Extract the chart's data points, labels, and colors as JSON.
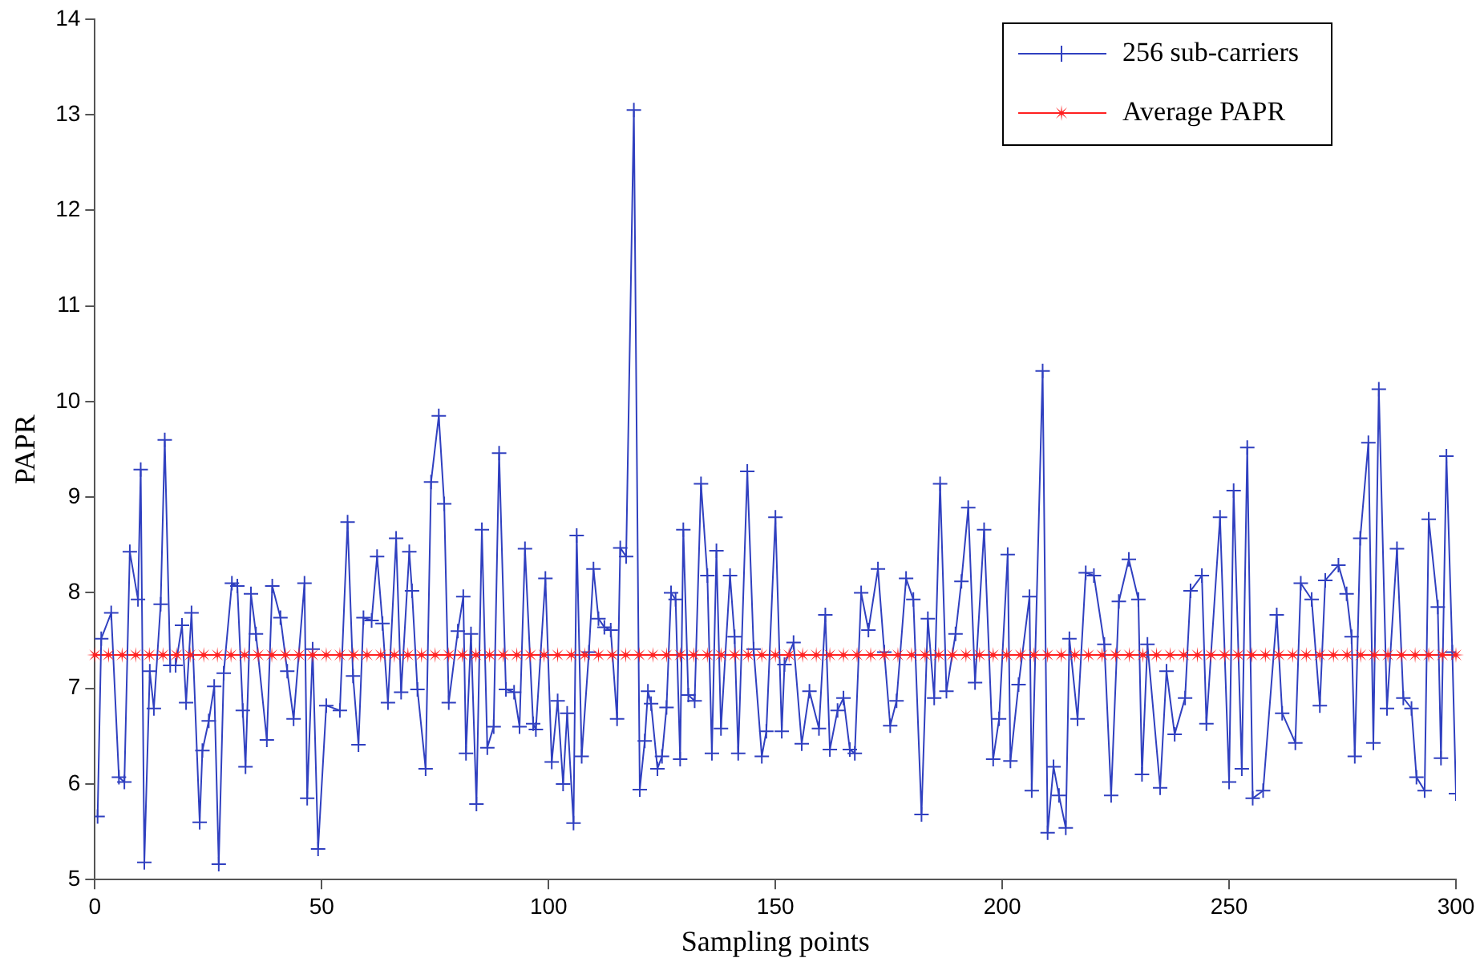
{
  "chart_data": {
    "type": "line",
    "xlabel": "Sampling points",
    "ylabel": "PAPR",
    "xlim": [
      0,
      300
    ],
    "xticks": [
      0,
      50,
      100,
      150,
      200,
      250,
      300
    ],
    "ylim": [
      5,
      14
    ],
    "yticks": [
      5,
      6,
      7,
      8,
      9,
      10,
      11,
      12,
      13,
      14
    ],
    "grid": false,
    "legend": "top right",
    "series": [
      {
        "name": "256 sub-carriers",
        "color": "#3040c0",
        "marker": "cross",
        "x": [
          0.6,
          1.4,
          3.6,
          5.3,
          6.5,
          7.7,
          9.5,
          10.1,
          10.9,
          12.1,
          13,
          14.5,
          15.4,
          16.6,
          17.8,
          19.2,
          20.1,
          21.3,
          23.1,
          23.7,
          25.1,
          26.3,
          27.3,
          28.4,
          30.2,
          31.4,
          32.6,
          33.2,
          34.4,
          35.5,
          37.9,
          39.1,
          40.9,
          42.4,
          43.8,
          46.2,
          46.8,
          48,
          49.2,
          51,
          54,
          55.7,
          56.9,
          58.1,
          59.2,
          61,
          62.2,
          63.4,
          64.6,
          66.4,
          67.5,
          69.3,
          69.9,
          71.1,
          72.9,
          74.1,
          75.8,
          77,
          78,
          80,
          81.2,
          81.8,
          82.9,
          84.1,
          85.3,
          86.5,
          87.9,
          89.1,
          90.6,
          92.4,
          93.6,
          94.8,
          96.6,
          97.2,
          99.3,
          100.7,
          102,
          103.2,
          104.1,
          105.5,
          106.2,
          107.3,
          108.9,
          109.9,
          111,
          112.3,
          113.7,
          115.1,
          115.8,
          117.1,
          118.8,
          120.1,
          121.2,
          121.9,
          122.6,
          124,
          125,
          126,
          127,
          128,
          129,
          129.7,
          130.8,
          132.2,
          133.6,
          135,
          136,
          137,
          138,
          140,
          141,
          141.8,
          143.8,
          145.2,
          147,
          148,
          150,
          151.4,
          152,
          154,
          155.8,
          157.5,
          159.6,
          161,
          162,
          163.7,
          165,
          166.4,
          167.5,
          168.9,
          170.5,
          172.6,
          174,
          175.3,
          176.7,
          178.8,
          180.4,
          182.2,
          183.6,
          185,
          186.3,
          187.7,
          189.7,
          191,
          192.5,
          194,
          196,
          198,
          199.3,
          201.2,
          201.8,
          203.6,
          206,
          206.5,
          208.9,
          210,
          211.3,
          212.5,
          214,
          214.8,
          216.6,
          218.4,
          220.2,
          222.5,
          224,
          225.7,
          227.9,
          230,
          230.8,
          232,
          234.8,
          236.2,
          238,
          240.3,
          241.5,
          244,
          245,
          248,
          250,
          251,
          252.8,
          254,
          255.2,
          257.5,
          260.5,
          261.7,
          264.6,
          265.8,
          268.2,
          270,
          271.2,
          274.1,
          275.9,
          277,
          277.7,
          278.9,
          280.7,
          281.8,
          283,
          284.8,
          287,
          288.4,
          290.2,
          291.3,
          293.1,
          294,
          296,
          296.7,
          297.9,
          299.2,
          300
        ],
        "values": [
          5.66,
          7.52,
          7.79,
          6.07,
          6.02,
          8.43,
          7.93,
          9.29,
          5.18,
          7.18,
          6.79,
          7.88,
          9.6,
          7.24,
          7.24,
          7.66,
          6.85,
          7.79,
          5.6,
          6.35,
          6.66,
          7.02,
          5.16,
          7.16,
          8.1,
          8.07,
          6.77,
          6.18,
          7.99,
          7.57,
          6.46,
          8.07,
          7.74,
          7.18,
          6.68,
          8.1,
          5.85,
          7.41,
          5.32,
          6.82,
          6.77,
          8.74,
          7.13,
          6.41,
          7.74,
          7.71,
          8.38,
          7.68,
          6.85,
          8.57,
          6.96,
          8.43,
          8.02,
          6.99,
          6.16,
          9.16,
          9.85,
          8.93,
          6.85,
          7.6,
          7.96,
          6.32,
          7.57,
          5.79,
          8.66,
          6.38,
          6.6,
          9.46,
          6.99,
          6.96,
          6.6,
          8.46,
          6.63,
          6.57,
          8.15,
          6.23,
          6.87,
          6,
          6.74,
          5.59,
          8.6,
          6.29,
          7.38,
          8.25,
          7.73,
          7.64,
          7.61,
          6.68,
          8.47,
          8.38,
          13.05,
          5.94,
          6.45,
          6.97,
          6.84,
          6.16,
          6.29,
          6.8,
          8,
          7.93,
          6.26,
          8.66,
          6.93,
          6.87,
          9.14,
          8.18,
          6.32,
          8.44,
          6.58,
          8.18,
          7.54,
          6.32,
          9.27,
          7.41,
          6.29,
          6.55,
          8.79,
          6.55,
          7.25,
          7.48,
          6.42,
          6.97,
          6.58,
          7.77,
          6.36,
          6.77,
          6.9,
          6.36,
          6.32,
          8,
          7.61,
          8.25,
          7.38,
          6.61,
          6.87,
          8.15,
          7.93,
          5.68,
          7.73,
          6.9,
          9.14,
          6.97,
          7.57,
          8.12,
          8.89,
          7.06,
          8.66,
          6.26,
          6.68,
          8.4,
          6.24,
          7.04,
          7.96,
          5.93,
          10.32,
          5.49,
          6.18,
          5.88,
          5.54,
          7.52,
          6.68,
          8.21,
          8.18,
          7.46,
          5.88,
          7.91,
          8.35,
          7.93,
          6.1,
          7.46,
          5.96,
          7.18,
          6.52,
          6.9,
          8.02,
          8.18,
          6.63,
          8.79,
          6.02,
          9.07,
          6.16,
          9.52,
          5.85,
          5.93,
          7.77,
          6.74,
          6.43,
          8.1,
          7.93,
          6.82,
          8.13,
          8.29,
          7.99,
          7.54,
          6.29,
          8.57,
          9.57,
          6.43,
          10.13,
          6.79,
          8.46,
          6.9,
          6.79,
          6.07,
          5.93,
          8.77,
          7.85,
          6.27,
          9.43,
          7.38,
          5.9
        ]
      },
      {
        "name": "Average PAPR",
        "color": "#ff2020",
        "marker": "star",
        "x": [
          0,
          3,
          6,
          9,
          12,
          15,
          18,
          21,
          24,
          27,
          30,
          33,
          36,
          39,
          42,
          45,
          48,
          51,
          54,
          57,
          60,
          63,
          66,
          69,
          72,
          75,
          78,
          81,
          84,
          87,
          90,
          93,
          96,
          99,
          102,
          105,
          108,
          111,
          114,
          117,
          120,
          123,
          126,
          129,
          132,
          135,
          138,
          141,
          144,
          147,
          150,
          153,
          156,
          159,
          162,
          165,
          168,
          171,
          174,
          177,
          180,
          183,
          186,
          189,
          192,
          195,
          198,
          201,
          204,
          207,
          210,
          213,
          216,
          219,
          222,
          225,
          228,
          231,
          234,
          237,
          240,
          243,
          246,
          249,
          252,
          255,
          258,
          261,
          264,
          267,
          270,
          273,
          276,
          279,
          282,
          285,
          288,
          291,
          294,
          297,
          300
        ],
        "values": [
          7.35,
          7.35,
          7.35,
          7.35,
          7.35,
          7.35,
          7.35,
          7.35,
          7.35,
          7.35,
          7.35,
          7.35,
          7.35,
          7.35,
          7.35,
          7.35,
          7.35,
          7.35,
          7.35,
          7.35,
          7.35,
          7.35,
          7.35,
          7.35,
          7.35,
          7.35,
          7.35,
          7.35,
          7.35,
          7.35,
          7.35,
          7.35,
          7.35,
          7.35,
          7.35,
          7.35,
          7.35,
          7.35,
          7.35,
          7.35,
          7.35,
          7.35,
          7.35,
          7.35,
          7.35,
          7.35,
          7.35,
          7.35,
          7.35,
          7.35,
          7.35,
          7.35,
          7.35,
          7.35,
          7.35,
          7.35,
          7.35,
          7.35,
          7.35,
          7.35,
          7.35,
          7.35,
          7.35,
          7.35,
          7.35,
          7.35,
          7.35,
          7.35,
          7.35,
          7.35,
          7.35,
          7.35,
          7.35,
          7.35,
          7.35,
          7.35,
          7.35,
          7.35,
          7.35,
          7.35,
          7.35,
          7.35,
          7.35,
          7.35,
          7.35,
          7.35,
          7.35,
          7.35,
          7.35,
          7.35,
          7.35,
          7.35,
          7.35,
          7.35,
          7.35,
          7.35,
          7.35,
          7.35,
          7.35,
          7.35,
          7.35
        ]
      }
    ]
  }
}
